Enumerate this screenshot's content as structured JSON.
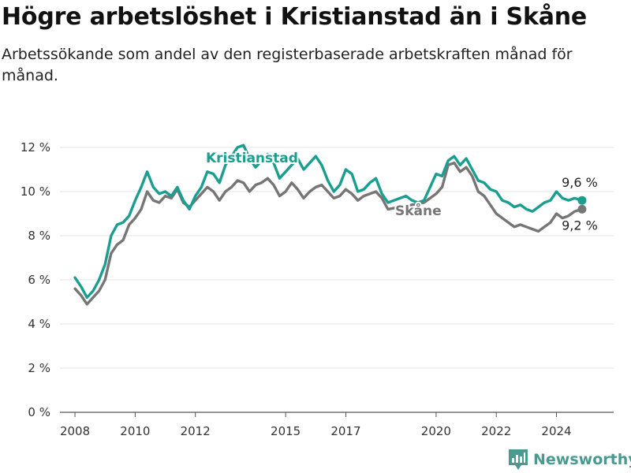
{
  "title": "Högre arbetslöshet i Kristianstad än i Skåne",
  "subtitle": "Arbetssökande som andel av den registerbaserade arbetskraften månad för månad.",
  "brand": {
    "name": "Newsworthy",
    "color": "#4a9a8f",
    "icon": "bar-chart-logo-icon"
  },
  "chart_data": {
    "type": "line",
    "ylim": [
      0,
      12
    ],
    "xlim": [
      2007.5,
      2025.9
    ],
    "y_ticks": [
      0,
      2,
      4,
      6,
      8,
      10,
      12
    ],
    "y_tick_labels": [
      "0 %",
      "2 %",
      "4 %",
      "6 %",
      "8 %",
      "10 %",
      "12 %"
    ],
    "x_ticks": [
      2008,
      2010,
      2012,
      2015,
      2017,
      2020,
      2022,
      2024
    ],
    "x_tick_labels": [
      "2008",
      "2010",
      "2012",
      "2015",
      "2017",
      "2020",
      "2022",
      "2024"
    ],
    "grid": true,
    "series": [
      {
        "name": "Kristianstad",
        "color": "#1a9e8f",
        "end_label": "9,6 %",
        "points": [
          [
            2008.0,
            6.1
          ],
          [
            2008.2,
            5.7
          ],
          [
            2008.4,
            5.2
          ],
          [
            2008.6,
            5.5
          ],
          [
            2008.8,
            6.0
          ],
          [
            2009.0,
            6.7
          ],
          [
            2009.2,
            8.0
          ],
          [
            2009.4,
            8.5
          ],
          [
            2009.6,
            8.6
          ],
          [
            2009.8,
            8.9
          ],
          [
            2010.0,
            9.6
          ],
          [
            2010.2,
            10.2
          ],
          [
            2010.4,
            10.9
          ],
          [
            2010.6,
            10.2
          ],
          [
            2010.8,
            9.9
          ],
          [
            2011.0,
            10.0
          ],
          [
            2011.2,
            9.8
          ],
          [
            2011.4,
            10.2
          ],
          [
            2011.6,
            9.6
          ],
          [
            2011.8,
            9.2
          ],
          [
            2012.0,
            9.8
          ],
          [
            2012.2,
            10.2
          ],
          [
            2012.4,
            10.9
          ],
          [
            2012.6,
            10.8
          ],
          [
            2012.8,
            10.4
          ],
          [
            2013.0,
            11.2
          ],
          [
            2013.2,
            11.6
          ],
          [
            2013.4,
            12.0
          ],
          [
            2013.6,
            12.1
          ],
          [
            2013.8,
            11.5
          ],
          [
            2014.0,
            11.1
          ],
          [
            2014.2,
            11.4
          ],
          [
            2014.4,
            11.7
          ],
          [
            2014.6,
            11.3
          ],
          [
            2014.8,
            10.6
          ],
          [
            2015.0,
            10.9
          ],
          [
            2015.2,
            11.2
          ],
          [
            2015.4,
            11.5
          ],
          [
            2015.6,
            11.0
          ],
          [
            2015.8,
            11.3
          ],
          [
            2016.0,
            11.6
          ],
          [
            2016.2,
            11.2
          ],
          [
            2016.4,
            10.5
          ],
          [
            2016.6,
            10.0
          ],
          [
            2016.8,
            10.3
          ],
          [
            2017.0,
            11.0
          ],
          [
            2017.2,
            10.8
          ],
          [
            2017.4,
            10.0
          ],
          [
            2017.6,
            10.1
          ],
          [
            2017.8,
            10.4
          ],
          [
            2018.0,
            10.6
          ],
          [
            2018.2,
            9.9
          ],
          [
            2018.4,
            9.5
          ],
          [
            2018.6,
            9.6
          ],
          [
            2018.8,
            9.7
          ],
          [
            2019.0,
            9.8
          ],
          [
            2019.2,
            9.6
          ],
          [
            2019.4,
            9.5
          ],
          [
            2019.6,
            9.6
          ],
          [
            2019.8,
            10.2
          ],
          [
            2020.0,
            10.8
          ],
          [
            2020.2,
            10.7
          ],
          [
            2020.4,
            11.4
          ],
          [
            2020.6,
            11.6
          ],
          [
            2020.8,
            11.2
          ],
          [
            2021.0,
            11.5
          ],
          [
            2021.2,
            11.0
          ],
          [
            2021.4,
            10.5
          ],
          [
            2021.6,
            10.4
          ],
          [
            2021.8,
            10.1
          ],
          [
            2022.0,
            10.0
          ],
          [
            2022.2,
            9.6
          ],
          [
            2022.4,
            9.5
          ],
          [
            2022.6,
            9.3
          ],
          [
            2022.8,
            9.4
          ],
          [
            2023.0,
            9.2
          ],
          [
            2023.2,
            9.1
          ],
          [
            2023.4,
            9.3
          ],
          [
            2023.6,
            9.5
          ],
          [
            2023.8,
            9.6
          ],
          [
            2024.0,
            10.0
          ],
          [
            2024.2,
            9.7
          ],
          [
            2024.4,
            9.6
          ],
          [
            2024.6,
            9.7
          ],
          [
            2024.85,
            9.6
          ]
        ]
      },
      {
        "name": "Skåne",
        "color": "#767676",
        "end_label": "9,2 %",
        "points": [
          [
            2008.0,
            5.6
          ],
          [
            2008.2,
            5.3
          ],
          [
            2008.4,
            4.9
          ],
          [
            2008.6,
            5.2
          ],
          [
            2008.8,
            5.5
          ],
          [
            2009.0,
            6.0
          ],
          [
            2009.2,
            7.2
          ],
          [
            2009.4,
            7.6
          ],
          [
            2009.6,
            7.8
          ],
          [
            2009.8,
            8.5
          ],
          [
            2010.0,
            8.8
          ],
          [
            2010.2,
            9.2
          ],
          [
            2010.4,
            10.0
          ],
          [
            2010.6,
            9.6
          ],
          [
            2010.8,
            9.5
          ],
          [
            2011.0,
            9.8
          ],
          [
            2011.2,
            9.7
          ],
          [
            2011.4,
            10.1
          ],
          [
            2011.6,
            9.5
          ],
          [
            2011.8,
            9.3
          ],
          [
            2012.0,
            9.6
          ],
          [
            2012.2,
            9.9
          ],
          [
            2012.4,
            10.2
          ],
          [
            2012.6,
            10.0
          ],
          [
            2012.8,
            9.6
          ],
          [
            2013.0,
            10.0
          ],
          [
            2013.2,
            10.2
          ],
          [
            2013.4,
            10.5
          ],
          [
            2013.6,
            10.4
          ],
          [
            2013.8,
            10.0
          ],
          [
            2014.0,
            10.3
          ],
          [
            2014.2,
            10.4
          ],
          [
            2014.4,
            10.6
          ],
          [
            2014.6,
            10.3
          ],
          [
            2014.8,
            9.8
          ],
          [
            2015.0,
            10.0
          ],
          [
            2015.2,
            10.4
          ],
          [
            2015.4,
            10.1
          ],
          [
            2015.6,
            9.7
          ],
          [
            2015.8,
            10.0
          ],
          [
            2016.0,
            10.2
          ],
          [
            2016.2,
            10.3
          ],
          [
            2016.4,
            10.0
          ],
          [
            2016.6,
            9.7
          ],
          [
            2016.8,
            9.8
          ],
          [
            2017.0,
            10.1
          ],
          [
            2017.2,
            9.9
          ],
          [
            2017.4,
            9.6
          ],
          [
            2017.6,
            9.8
          ],
          [
            2017.8,
            9.9
          ],
          [
            2018.0,
            10.0
          ],
          [
            2018.2,
            9.7
          ],
          [
            2018.4,
            9.2
          ],
          [
            2019.6,
            9.5
          ],
          [
            2019.8,
            9.7
          ],
          [
            2020.0,
            9.9
          ],
          [
            2020.2,
            10.2
          ],
          [
            2020.4,
            11.2
          ],
          [
            2020.6,
            11.3
          ],
          [
            2020.8,
            10.9
          ],
          [
            2021.0,
            11.1
          ],
          [
            2021.2,
            10.7
          ],
          [
            2021.4,
            10.0
          ],
          [
            2021.6,
            9.8
          ],
          [
            2021.8,
            9.4
          ],
          [
            2022.0,
            9.0
          ],
          [
            2022.2,
            8.8
          ],
          [
            2022.4,
            8.6
          ],
          [
            2022.6,
            8.4
          ],
          [
            2022.8,
            8.5
          ],
          [
            2023.0,
            8.4
          ],
          [
            2023.2,
            8.3
          ],
          [
            2023.4,
            8.2
          ],
          [
            2023.6,
            8.4
          ],
          [
            2023.8,
            8.6
          ],
          [
            2024.0,
            9.0
          ],
          [
            2024.2,
            8.8
          ],
          [
            2024.4,
            8.9
          ],
          [
            2024.6,
            9.1
          ],
          [
            2024.85,
            9.2
          ]
        ]
      }
    ]
  }
}
